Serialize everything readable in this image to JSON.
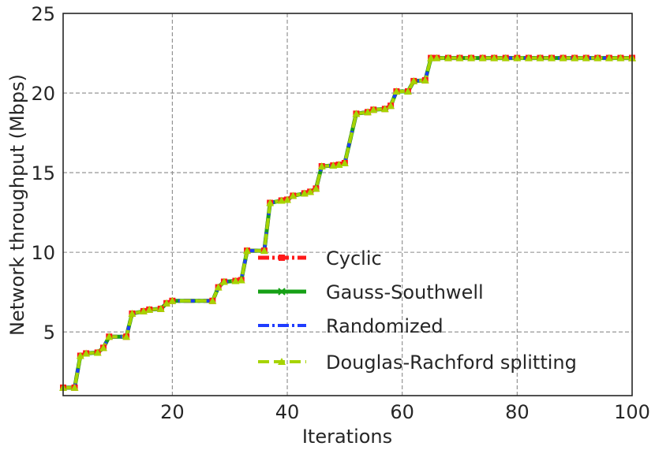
{
  "chart_data": {
    "type": "line",
    "xlabel": "Iterations",
    "ylabel": "Network throughput (Mbps)",
    "xlim": [
      1,
      100
    ],
    "ylim": [
      1,
      25
    ],
    "xticks": [
      20,
      40,
      60,
      80,
      100
    ],
    "yticks": [
      5,
      10,
      15,
      20,
      25
    ],
    "grid": true,
    "legend_position": "lower-right",
    "steps": [
      [
        1,
        1.5
      ],
      [
        3,
        1.5
      ],
      [
        4,
        3.5
      ],
      [
        5,
        3.65
      ],
      [
        7,
        3.7
      ],
      [
        8,
        4.0
      ],
      [
        9,
        4.7
      ],
      [
        12,
        4.7
      ],
      [
        13,
        6.15
      ],
      [
        15,
        6.3
      ],
      [
        16,
        6.4
      ],
      [
        18,
        6.45
      ],
      [
        19,
        6.8
      ],
      [
        20,
        6.95
      ],
      [
        27,
        6.95
      ],
      [
        28,
        7.8
      ],
      [
        29,
        8.15
      ],
      [
        31,
        8.2
      ],
      [
        32,
        8.25
      ],
      [
        33,
        10.1
      ],
      [
        36,
        10.1
      ],
      [
        37,
        13.1
      ],
      [
        39,
        13.25
      ],
      [
        40,
        13.3
      ],
      [
        41,
        13.55
      ],
      [
        43,
        13.7
      ],
      [
        44,
        13.8
      ],
      [
        45,
        14.0
      ],
      [
        46,
        15.4
      ],
      [
        48,
        15.45
      ],
      [
        49,
        15.5
      ],
      [
        50,
        15.6
      ],
      [
        52,
        18.7
      ],
      [
        54,
        18.8
      ],
      [
        55,
        18.95
      ],
      [
        57,
        19.0
      ],
      [
        58,
        19.2
      ],
      [
        59,
        20.1
      ],
      [
        61,
        20.1
      ],
      [
        62,
        20.75
      ],
      [
        64,
        20.8
      ],
      [
        65,
        22.2
      ],
      [
        100,
        22.2
      ]
    ],
    "series": [
      {
        "name": "Cyclic",
        "color": "#ff1a1a",
        "marker": "square",
        "style": "dash-dot"
      },
      {
        "name": "Gauss-Southwell",
        "color": "#16a016",
        "marker": "x",
        "style": "solid"
      },
      {
        "name": "Randomized",
        "color": "#1f3cff",
        "marker": "none",
        "style": "dash-dot"
      },
      {
        "name": "Douglas-Rachford splitting",
        "color": "#a6d400",
        "marker": "triangle-up",
        "style": "dash"
      }
    ]
  }
}
